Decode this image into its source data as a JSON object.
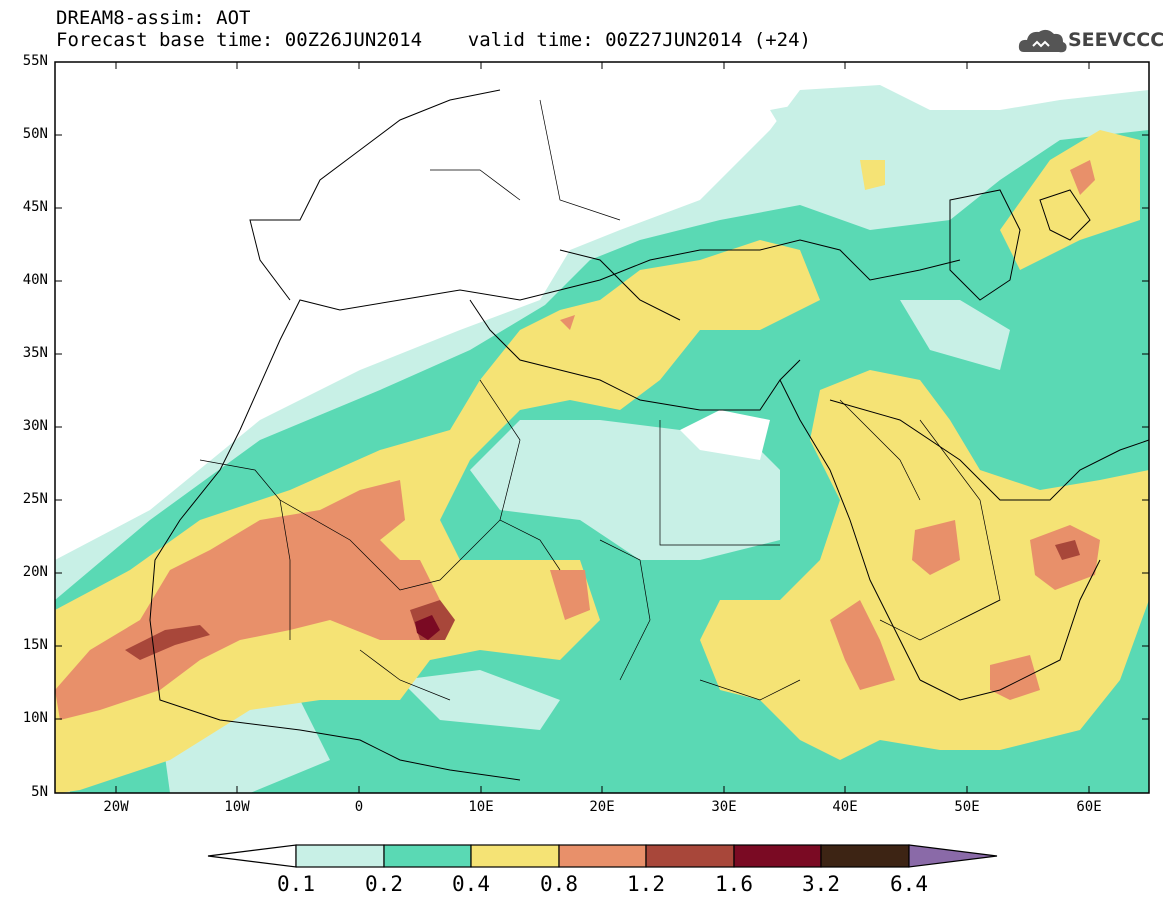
{
  "header": {
    "line1": "DREAM8-assim: AOT",
    "line2": "Forecast base time: 00Z26JUN2014    valid time: 00Z27JUN2014 (+24)"
  },
  "logo": {
    "text": "SEEVCCC",
    "icon": "cloud-icon"
  },
  "map": {
    "lat_labels": [
      "55N",
      "50N",
      "45N",
      "40N",
      "35N",
      "30N",
      "25N",
      "20N",
      "15N",
      "10N",
      "5N"
    ],
    "lon_labels": [
      "20W",
      "10W",
      "0",
      "10E",
      "20E",
      "30E",
      "40E",
      "50E",
      "60E"
    ],
    "lat_range": [
      5,
      55
    ],
    "lon_range": [
      -25,
      65
    ]
  },
  "colorbar": {
    "labels": [
      "0.1",
      "0.2",
      "0.4",
      "0.8",
      "1.2",
      "1.6",
      "3.2",
      "6.4"
    ],
    "colors": [
      "#ffffff",
      "#c8f0e6",
      "#5ad9b4",
      "#f5e375",
      "#e8906a",
      "#a8473a",
      "#7a0a23",
      "#3d2414",
      "#8a6aa8"
    ]
  }
}
